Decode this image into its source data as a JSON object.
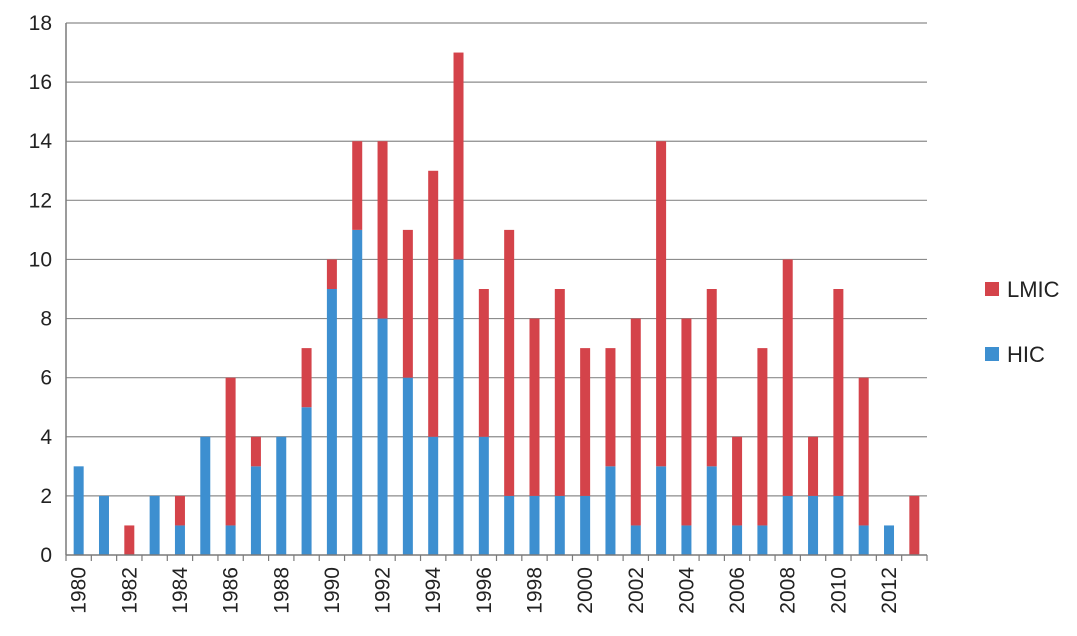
{
  "chart_data": {
    "type": "bar",
    "stacked": true,
    "title": "",
    "xlabel": "",
    "ylabel": "",
    "ylim": [
      0,
      18
    ],
    "yticks": [
      0,
      2,
      4,
      6,
      8,
      10,
      12,
      14,
      16,
      18
    ],
    "grid": true,
    "legend_position": "right",
    "categories": [
      "1980",
      "1981",
      "1982",
      "1983",
      "1984",
      "1985",
      "1986",
      "1987",
      "1988",
      "1989",
      "1990",
      "1991",
      "1992",
      "1993",
      "1994",
      "1995",
      "1996",
      "1997",
      "1998",
      "1999",
      "2000",
      "2001",
      "2002",
      "2003",
      "2004",
      "2005",
      "2006",
      "2007",
      "2008",
      "2009",
      "2010",
      "2011",
      "2012",
      "2013"
    ],
    "xtick_labels": [
      "1980",
      "1982",
      "1984",
      "1986",
      "1988",
      "1990",
      "1992",
      "1994",
      "1996",
      "1998",
      "2000",
      "2002",
      "2004",
      "2006",
      "2008",
      "2010",
      "2012"
    ],
    "series": [
      {
        "name": "HIC",
        "color": "#3d8fd0",
        "values": [
          3,
          2,
          0,
          2,
          1,
          4,
          1,
          3,
          4,
          5,
          9,
          11,
          8,
          6,
          4,
          10,
          4,
          2,
          2,
          2,
          2,
          3,
          1,
          3,
          1,
          3,
          1,
          1,
          2,
          2,
          2,
          1,
          1,
          0
        ]
      },
      {
        "name": "LMIC",
        "color": "#d4434a",
        "values": [
          0,
          0,
          1,
          0,
          1,
          0,
          5,
          1,
          0,
          2,
          1,
          3,
          6,
          5,
          9,
          7,
          5,
          9,
          6,
          7,
          5,
          4,
          7,
          11,
          7,
          6,
          3,
          6,
          8,
          2,
          7,
          5,
          0,
          2
        ]
      }
    ],
    "legend": [
      {
        "name": "LMIC",
        "color": "#d4434a"
      },
      {
        "name": "HIC",
        "color": "#3d8fd0"
      }
    ]
  }
}
